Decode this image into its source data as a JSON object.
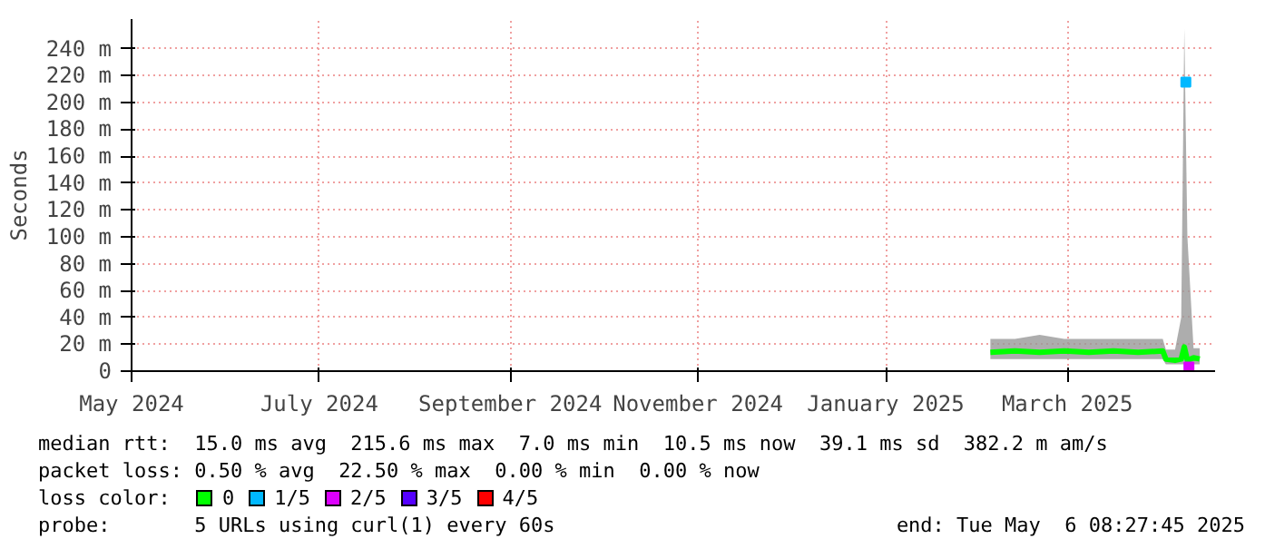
{
  "chart_data": {
    "type": "line",
    "ylabel": "Seconds",
    "legend_title": "loss color:",
    "legend": "bottom",
    "grid": true,
    "xlim": [
      "2024-05-01",
      "2025-04-18"
    ],
    "xticks": [
      {
        "value": "2024-05-01",
        "label": "May 2024"
      },
      {
        "value": "2024-07-01",
        "label": "July 2024"
      },
      {
        "value": "2024-09-01",
        "label": "September 2024"
      },
      {
        "value": "2024-11-01",
        "label": "November 2024"
      },
      {
        "value": "2025-01-01",
        "label": "January 2025"
      },
      {
        "value": "2025-03-01",
        "label": "March 2025"
      }
    ],
    "ylim": [
      0,
      262
    ],
    "yticks": [
      0,
      {
        "value": 20,
        "label": "20 m"
      },
      {
        "value": 40,
        "label": "40 m"
      },
      {
        "value": 60,
        "label": "60 m"
      },
      {
        "value": 80,
        "label": "80 m"
      },
      {
        "value": 100,
        "label": "100 m"
      },
      {
        "value": 120,
        "label": "120 m"
      },
      {
        "value": 140,
        "label": "140 m"
      },
      {
        "value": 160,
        "label": "160 m"
      },
      {
        "value": 180,
        "label": "180 m"
      },
      {
        "value": 200,
        "label": "200 m"
      },
      {
        "value": 220,
        "label": "220 m"
      },
      {
        "value": 240,
        "label": "240 m"
      }
    ],
    "series": [
      {
        "name": "0",
        "color": "#00ff00",
        "x": [
          "2025-02-04",
          "2025-02-12",
          "2025-02-20",
          "2025-02-28",
          "2025-03-08",
          "2025-03-16",
          "2025-03-24",
          "2025-04-01",
          "2025-04-02",
          "2025-04-05",
          "2025-04-07",
          "2025-04-08",
          "2025-04-09",
          "2025-04-11",
          "2025-04-13"
        ],
        "values": [
          14,
          15,
          14,
          15,
          14,
          15,
          14,
          15,
          9,
          8,
          9,
          18,
          8,
          10,
          9
        ],
        "lower": [
          9,
          9,
          9,
          9,
          9,
          9,
          9,
          9,
          5,
          5,
          5,
          5,
          5,
          5,
          5
        ],
        "upper": [
          24,
          24,
          27,
          24,
          24,
          24,
          24,
          24,
          16,
          16,
          40,
          255,
          100,
          17,
          17
        ]
      },
      {
        "name": "1/5",
        "color": "#00b8ff",
        "type": "scatter",
        "x": [
          "2025-04-08T12:00"
        ],
        "values": [
          215
        ]
      },
      {
        "name": "2/5",
        "color": "#dd00ff",
        "type": "scatter",
        "x": [
          "2025-04-09T12:00"
        ],
        "values": [
          3
        ]
      },
      {
        "name": "3/5",
        "color": "#5500ff",
        "type": "scatter"
      },
      {
        "name": "4/5",
        "color": "#ff0000",
        "type": "scatter"
      }
    ],
    "annotations": [
      "median rtt:  15.0 ms avg  215.6 ms max  7.0 ms min  10.5 ms now  39.1 ms sd  382.2 m am/s",
      "packet loss: 0.50 % avg  22.50 % max  0.00 % min  0.00 % now",
      "probe:       5 URLs using curl(1) every 60s",
      "end: Tue May  6 08:27:45 2025"
    ]
  }
}
